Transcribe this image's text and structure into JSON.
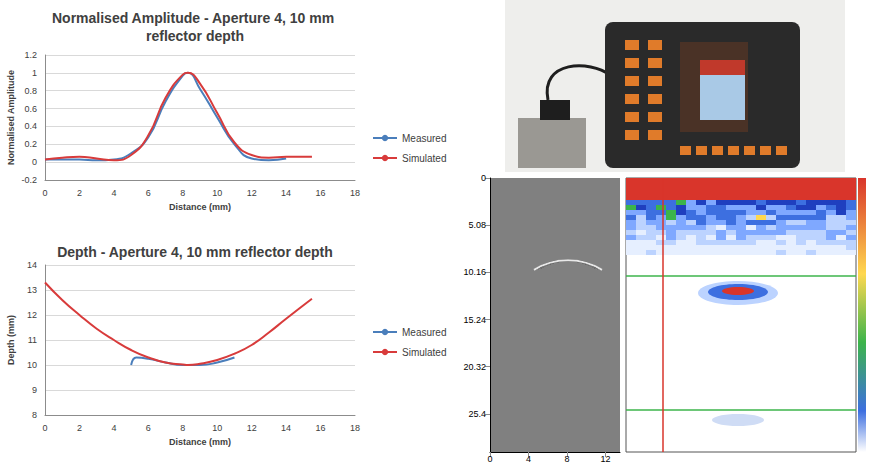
{
  "chart_data": [
    {
      "type": "line",
      "title": "Normalised Amplitude - Aperture 4, 10 mm reflector depth",
      "x_label": "Distance (mm)",
      "y_label": "Normalised Amplitude",
      "xlim": [
        0,
        18
      ],
      "xticks": [
        0,
        2,
        4,
        6,
        8,
        10,
        12,
        14,
        16,
        18
      ],
      "ylim": [
        -0.2,
        1.2
      ],
      "yticks": [
        -0.2,
        0,
        0.2,
        0.4,
        0.6,
        0.8,
        1,
        1.2
      ],
      "grid": true,
      "legend": "right",
      "series": [
        {
          "name": "Measured",
          "color": "#4a7ebb",
          "x": [
            0,
            1,
            2,
            3,
            4,
            5,
            6,
            7,
            8,
            8.3,
            9,
            10,
            11,
            12,
            13,
            14
          ],
          "values": [
            0.03,
            0.03,
            0.03,
            0.02,
            0.03,
            0.1,
            0.28,
            0.68,
            0.97,
            1.0,
            0.82,
            0.5,
            0.2,
            0.04,
            0.02,
            0.04
          ]
        },
        {
          "name": "Simulated",
          "color": "#d83b3b",
          "x": [
            0,
            1,
            2,
            3,
            4,
            5,
            6,
            7,
            8,
            8.3,
            9,
            10,
            11,
            12,
            13,
            14,
            15.5
          ],
          "values": [
            0.03,
            0.05,
            0.06,
            0.04,
            0.02,
            0.08,
            0.3,
            0.72,
            0.98,
            1.0,
            0.88,
            0.55,
            0.22,
            0.08,
            0.05,
            0.06,
            0.06
          ]
        }
      ]
    },
    {
      "type": "line",
      "title": "Depth - Aperture 4, 10 mm reflector depth",
      "x_label": "Distance (mm)",
      "y_label": "Depth (mm)",
      "xlim": [
        0,
        18
      ],
      "xticks": [
        0,
        2,
        4,
        6,
        8,
        10,
        12,
        14,
        16,
        18
      ],
      "ylim": [
        8,
        14
      ],
      "yticks": [
        8,
        9,
        10,
        11,
        12,
        13,
        14
      ],
      "grid": true,
      "legend": "right",
      "series": [
        {
          "name": "Measured",
          "color": "#4a7ebb",
          "x": [
            5,
            5.3,
            6,
            7,
            8,
            9,
            10,
            11
          ],
          "values": [
            10.0,
            10.3,
            10.25,
            10.1,
            10.0,
            10.0,
            10.1,
            10.3
          ]
        },
        {
          "name": "Simulated",
          "color": "#d83b3b",
          "x": [
            0,
            1,
            2,
            3,
            4,
            5,
            6,
            7,
            8,
            8.3,
            9,
            10,
            11,
            12,
            13,
            14,
            15.5
          ],
          "values": [
            13.3,
            12.6,
            12.0,
            11.45,
            11.0,
            10.6,
            10.3,
            10.1,
            10.02,
            10.0,
            10.05,
            10.2,
            10.45,
            10.8,
            11.3,
            11.85,
            12.65
          ]
        }
      ]
    },
    {
      "type": "image",
      "xlim": [
        0,
        13.5
      ],
      "xticks": [
        0,
        4,
        8,
        12
      ],
      "ylim": [
        0,
        29.5
      ],
      "yticks": [
        0,
        5.08,
        10.16,
        15.24,
        20.32,
        25.4
      ]
    }
  ]
}
